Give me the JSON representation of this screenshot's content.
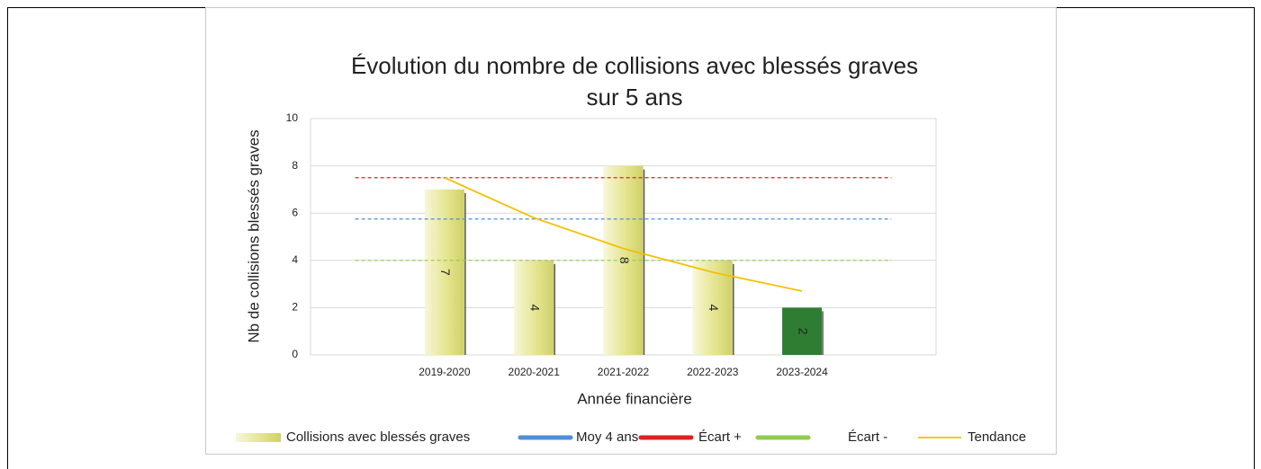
{
  "chart_data": {
    "type": "bar",
    "title": [
      "Évolution du nombre  de collisions avec blessés graves",
      "sur 5 ans"
    ],
    "x_label": "Année financière",
    "y_label": "Nb de collisions blessés graves",
    "categories": [
      null,
      "2019-2020",
      "2020-2021",
      "2021-2022",
      "2022-2023",
      "2023-2024",
      null
    ],
    "ylim": [
      0,
      10
    ],
    "yticks": [
      0,
      2,
      4,
      6,
      8,
      10
    ],
    "grid": true,
    "legend": "bottom",
    "series": [
      {
        "name": "Collisions avec blessés graves",
        "type": "bar",
        "color": "#e3e38a",
        "point_colors": [
          null,
          "#e3e38a",
          "#e3e38a",
          "#e3e38a",
          "#e3e38a",
          "#2e7d32",
          null
        ],
        "values": [
          null,
          7,
          4,
          8,
          4,
          2,
          null
        ]
      },
      {
        "name": "Moy 4 ans",
        "type": "line",
        "dashed": true,
        "color": "#4f8fd6",
        "values": [
          5.75,
          5.75,
          5.75,
          5.75,
          5.75,
          5.75,
          5.75
        ]
      },
      {
        "name": "Écart +",
        "type": "line",
        "dashed": true,
        "color": "#e02020",
        "values": [
          7.5,
          7.5,
          7.5,
          7.5,
          7.5,
          7.5,
          7.5
        ]
      },
      {
        "name": "Écart -",
        "type": "line",
        "dashed": true,
        "color": "#8fcc50",
        "values": [
          4,
          4,
          4,
          4,
          4,
          4,
          4
        ]
      },
      {
        "name": "Tendance",
        "type": "line",
        "dashed": false,
        "color": "#f5c000",
        "values": [
          null,
          7.5,
          5.8,
          4.5,
          3.5,
          2.7,
          null
        ]
      }
    ]
  }
}
